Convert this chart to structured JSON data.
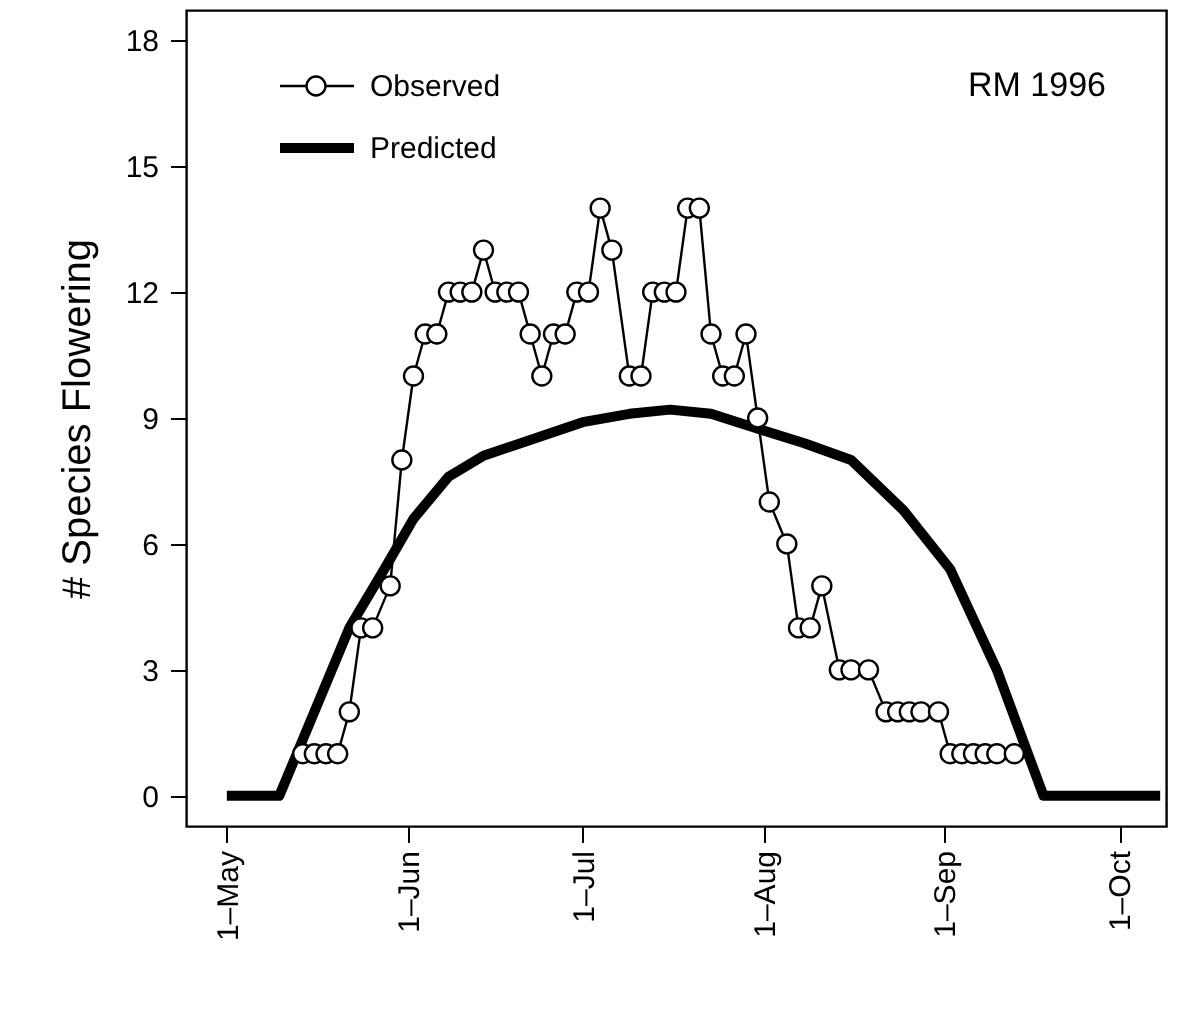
{
  "chart_data": {
    "type": "line",
    "ylabel": "# Species Flowering",
    "annotations": [
      "RM 1996"
    ],
    "legend": "top left",
    "grid": false,
    "xlim": [
      "1996-04-24",
      "1996-10-09"
    ],
    "xticks": [
      {
        "value": "1996-05-01",
        "label": "1–May"
      },
      {
        "value": "1996-06-01",
        "label": "1–Jun"
      },
      {
        "value": "1996-07-01",
        "label": "1–Jul"
      },
      {
        "value": "1996-08-01",
        "label": "1–Aug"
      },
      {
        "value": "1996-09-01",
        "label": "1–Sep"
      },
      {
        "value": "1996-10-01",
        "label": "1–Oct"
      }
    ],
    "ylim": [
      -0.72,
      18.72
    ],
    "yticks": [
      0,
      3,
      6,
      9,
      12,
      15,
      18
    ],
    "series": [
      {
        "name": "Observed",
        "color": "#000000",
        "marker": "circle",
        "line_style": "solid",
        "x": [
          "1996-05-14",
          "1996-05-16",
          "1996-05-18",
          "1996-05-20",
          "1996-05-22",
          "1996-05-24",
          "1996-05-26",
          "1996-05-29",
          "1996-05-31",
          "1996-06-02",
          "1996-06-04",
          "1996-06-06",
          "1996-06-08",
          "1996-06-10",
          "1996-06-12",
          "1996-06-14",
          "1996-06-16",
          "1996-06-18",
          "1996-06-20",
          "1996-06-22",
          "1996-06-24",
          "1996-06-26",
          "1996-06-28",
          "1996-06-30",
          "1996-07-02",
          "1996-07-04",
          "1996-07-06",
          "1996-07-09",
          "1996-07-11",
          "1996-07-13",
          "1996-07-15",
          "1996-07-17",
          "1996-07-19",
          "1996-07-21",
          "1996-07-23",
          "1996-07-25",
          "1996-07-27",
          "1996-07-29",
          "1996-07-31",
          "1996-08-02",
          "1996-08-05",
          "1996-08-07",
          "1996-08-09",
          "1996-08-11",
          "1996-08-14",
          "1996-08-16",
          "1996-08-19",
          "1996-08-22",
          "1996-08-24",
          "1996-08-26",
          "1996-08-28",
          "1996-08-31",
          "1996-09-02",
          "1996-09-04",
          "1996-09-06",
          "1996-09-08",
          "1996-09-10",
          "1996-09-13"
        ],
        "values": [
          1,
          1,
          1,
          1,
          2,
          4,
          4,
          5,
          8,
          10,
          11,
          11,
          12,
          12,
          12,
          13,
          12,
          12,
          12,
          11,
          10,
          11,
          11,
          12,
          12,
          14,
          13,
          10,
          10,
          12,
          12,
          12,
          14,
          14,
          11,
          10,
          10,
          11,
          9,
          7,
          6,
          4,
          4,
          5,
          3,
          3,
          3,
          2,
          2,
          2,
          2,
          2,
          1,
          1,
          1,
          1,
          1,
          1
        ]
      },
      {
        "name": "Predicted",
        "color": "#000000",
        "marker": "none",
        "line_style": "solid",
        "x": [
          "1996-05-01",
          "1996-05-10",
          "1996-05-16",
          "1996-05-22",
          "1996-05-28",
          "1996-06-02",
          "1996-06-08",
          "1996-06-14",
          "1996-07-01",
          "1996-07-09",
          "1996-07-16",
          "1996-07-23",
          "1996-08-01",
          "1996-08-08",
          "1996-08-16",
          "1996-08-25",
          "1996-09-02",
          "1996-09-10",
          "1996-09-18",
          "1996-10-08"
        ],
        "values": [
          0,
          0,
          2.0,
          4.0,
          5.4,
          6.6,
          7.6,
          8.1,
          8.9,
          9.1,
          9.2,
          9.1,
          8.7,
          8.4,
          8.0,
          6.8,
          5.4,
          3.0,
          0,
          0
        ]
      }
    ]
  }
}
